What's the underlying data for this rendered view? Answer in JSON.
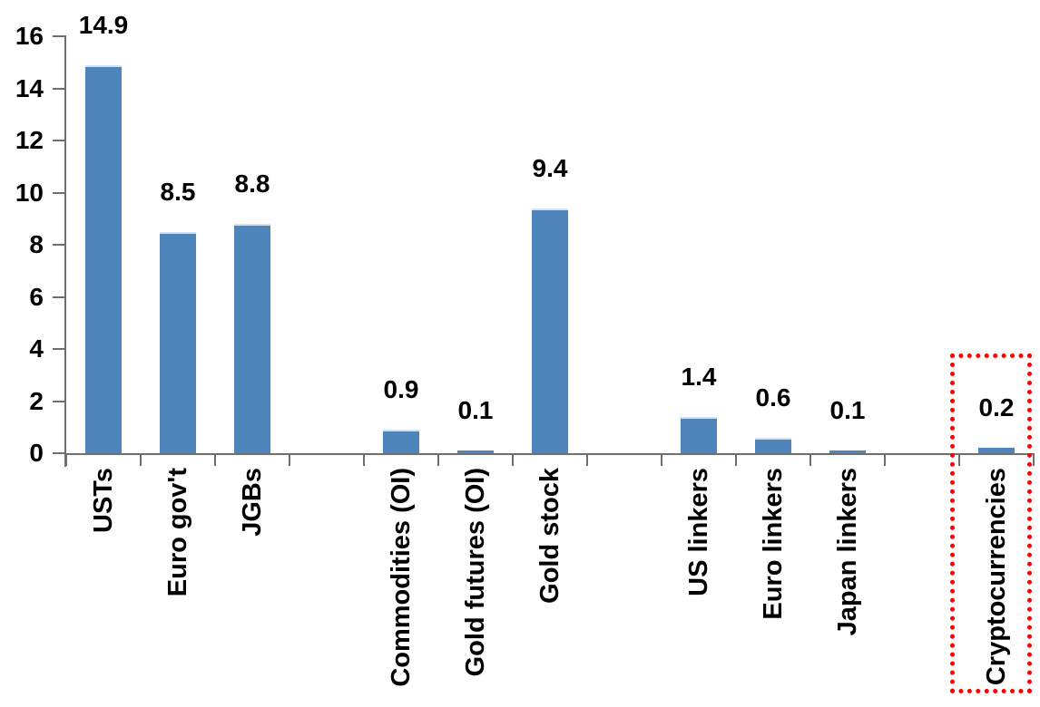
{
  "chart_data": {
    "type": "bar",
    "title": "",
    "xlabel": "",
    "ylabel": "",
    "categories": [
      "USTs",
      "Euro gov't",
      "JGBs",
      "",
      "Commodities (OI)",
      "Gold futures (OI)",
      "Gold stock",
      "",
      "US linkers",
      "Euro linkers",
      "Japan linkers",
      "",
      "Cryptocurrencies"
    ],
    "values": [
      14.9,
      8.5,
      8.8,
      null,
      0.9,
      0.1,
      9.4,
      null,
      1.4,
      0.6,
      0.1,
      null,
      0.2
    ],
    "data_labels": [
      "14.9",
      "8.5",
      "8.8",
      null,
      "0.9",
      "0.1",
      "9.4",
      null,
      "1.4",
      "0.6",
      "0.1",
      null,
      "0.2"
    ],
    "y_tick_labels": [
      "0",
      "2",
      "4",
      "6",
      "8",
      "10",
      "12",
      "14",
      "16"
    ],
    "ylim": [
      0,
      16
    ],
    "y_tick_step": 2,
    "grid": "off",
    "legend": "none",
    "category_label_rotation": -90,
    "bar_color": "#4E86BC",
    "bar_top_edge_color": "#D3E1EF",
    "axis_color": "#6E6E6E",
    "text_color": "#000000",
    "highlight": {
      "target": "Cryptocurrencies",
      "shape": "dotted-rectangle",
      "color": "#FF0000"
    }
  }
}
